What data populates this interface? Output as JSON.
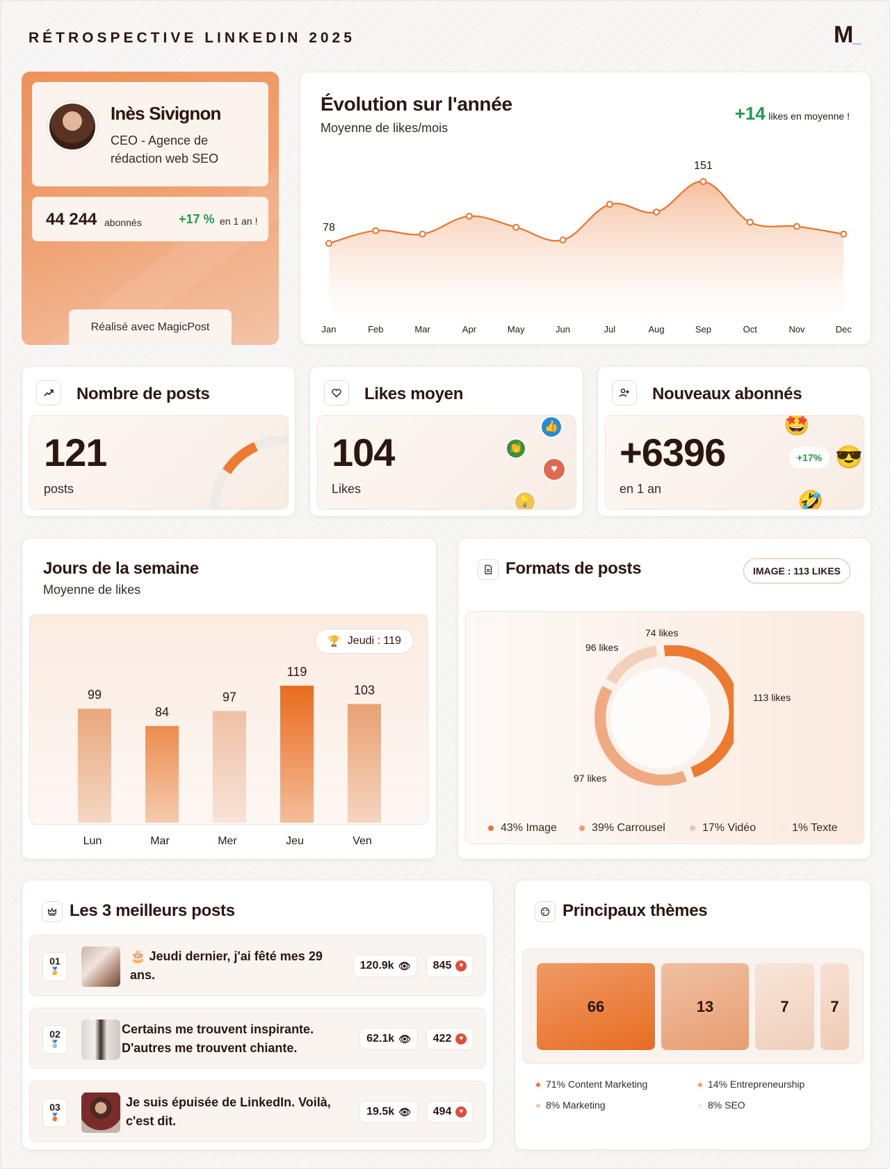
{
  "header": {
    "title": "RÉTROSPECTIVE LINKEDIN 2025",
    "logo": "M",
    "logo_accent": "_"
  },
  "profile": {
    "name": "Inès Sivignon",
    "role_line1": "CEO - Agence de",
    "role_line2": "rédaction web SEO",
    "followers": "44 244",
    "followers_label": "abonnés",
    "growth": "+17 %",
    "growth_label": "en 1 an !",
    "made_with": "Réalisé avec MagicPost"
  },
  "evolution": {
    "title": "Évolution sur l'année",
    "subtitle": "Moyenne de likes/mois",
    "badge_value": "+14",
    "badge_label": "likes en moyenne !"
  },
  "chart_data": {
    "type": "area",
    "x": [
      "Jan",
      "Feb",
      "Mar",
      "Apr",
      "May",
      "Jun",
      "Jul",
      "Aug",
      "Sep",
      "Oct",
      "Nov",
      "Dec"
    ],
    "values": [
      78,
      93,
      89,
      110,
      97,
      82,
      124,
      115,
      151,
      103,
      98,
      89
    ],
    "point_labels": {
      "Jan": "78",
      "Sep": "151"
    },
    "color": "#e8752e"
  },
  "kpis": {
    "posts": {
      "title": "Nombre de posts",
      "value": "121",
      "unit": "posts",
      "icon": "trend-up-icon"
    },
    "likes": {
      "title": "Likes moyen",
      "value": "104",
      "unit": "Likes",
      "icon": "heart-icon"
    },
    "subs": {
      "title": "Nouveaux abonnés",
      "value": "+6396",
      "unit": "en 1 an",
      "badge": "+17%",
      "icon": "user-plus-icon"
    }
  },
  "weekdays": {
    "title": "Jours de la semaine",
    "subtitle": "Moyenne de likes",
    "best": "Jeudi : 119",
    "bars": [
      {
        "day": "Lun",
        "value": 99,
        "color": "#e9a77c"
      },
      {
        "day": "Mar",
        "value": 84,
        "color": "#ec8c4e"
      },
      {
        "day": "Mer",
        "value": 97,
        "color": "#efc1a6"
      },
      {
        "day": "Jeu",
        "value": 119,
        "color": "#e96c1e"
      },
      {
        "day": "Ven",
        "value": 103,
        "color": "#e9a173"
      }
    ]
  },
  "formats": {
    "title": "Formats de posts",
    "badge": "IMAGE : 113 LIKES",
    "labels": {
      "image": "113 likes",
      "carrousel": "97 likes",
      "video": "96 likes",
      "texte": "74 likes"
    },
    "legend": [
      {
        "label": "43% Image",
        "color": "#e8752e"
      },
      {
        "label": "39% Carrousel",
        "color": "#ee9e6e"
      },
      {
        "label": "17% Vidéo",
        "color": "#f2c5ab"
      },
      {
        "label": "1% Texte",
        "color": "#f4ebe5"
      }
    ]
  },
  "top_posts": {
    "title": "Les 3 meilleurs posts",
    "items": [
      {
        "rank": "01",
        "emoji": "🎂",
        "text": "Jeudi dernier, j'ai fêté mes 29 ans.",
        "views": "120.9k",
        "likes": "845"
      },
      {
        "rank": "02",
        "emoji": "",
        "text": "Certains me trouvent inspirante. D'autres me trouvent chiante.",
        "views": "62.1k",
        "likes": "422"
      },
      {
        "rank": "03",
        "emoji": "",
        "text": "Je suis épuisée de LinkedIn. Voilà, c'est dit.",
        "views": "19.5k",
        "likes": "494"
      }
    ]
  },
  "themes": {
    "title": "Principaux thèmes",
    "tiles": [
      {
        "value": "66"
      },
      {
        "value": "13"
      },
      {
        "value": "7"
      },
      {
        "value": "7"
      }
    ],
    "legend": [
      {
        "label": "71% Content Marketing",
        "color": "#e8752e"
      },
      {
        "label": "14% Entrepreneurship",
        "color": "#ee9e6e"
      },
      {
        "label": "8% Marketing",
        "color": "#f2c5ab"
      },
      {
        "label": "8% SEO",
        "color": "#f4ebe5"
      }
    ]
  }
}
